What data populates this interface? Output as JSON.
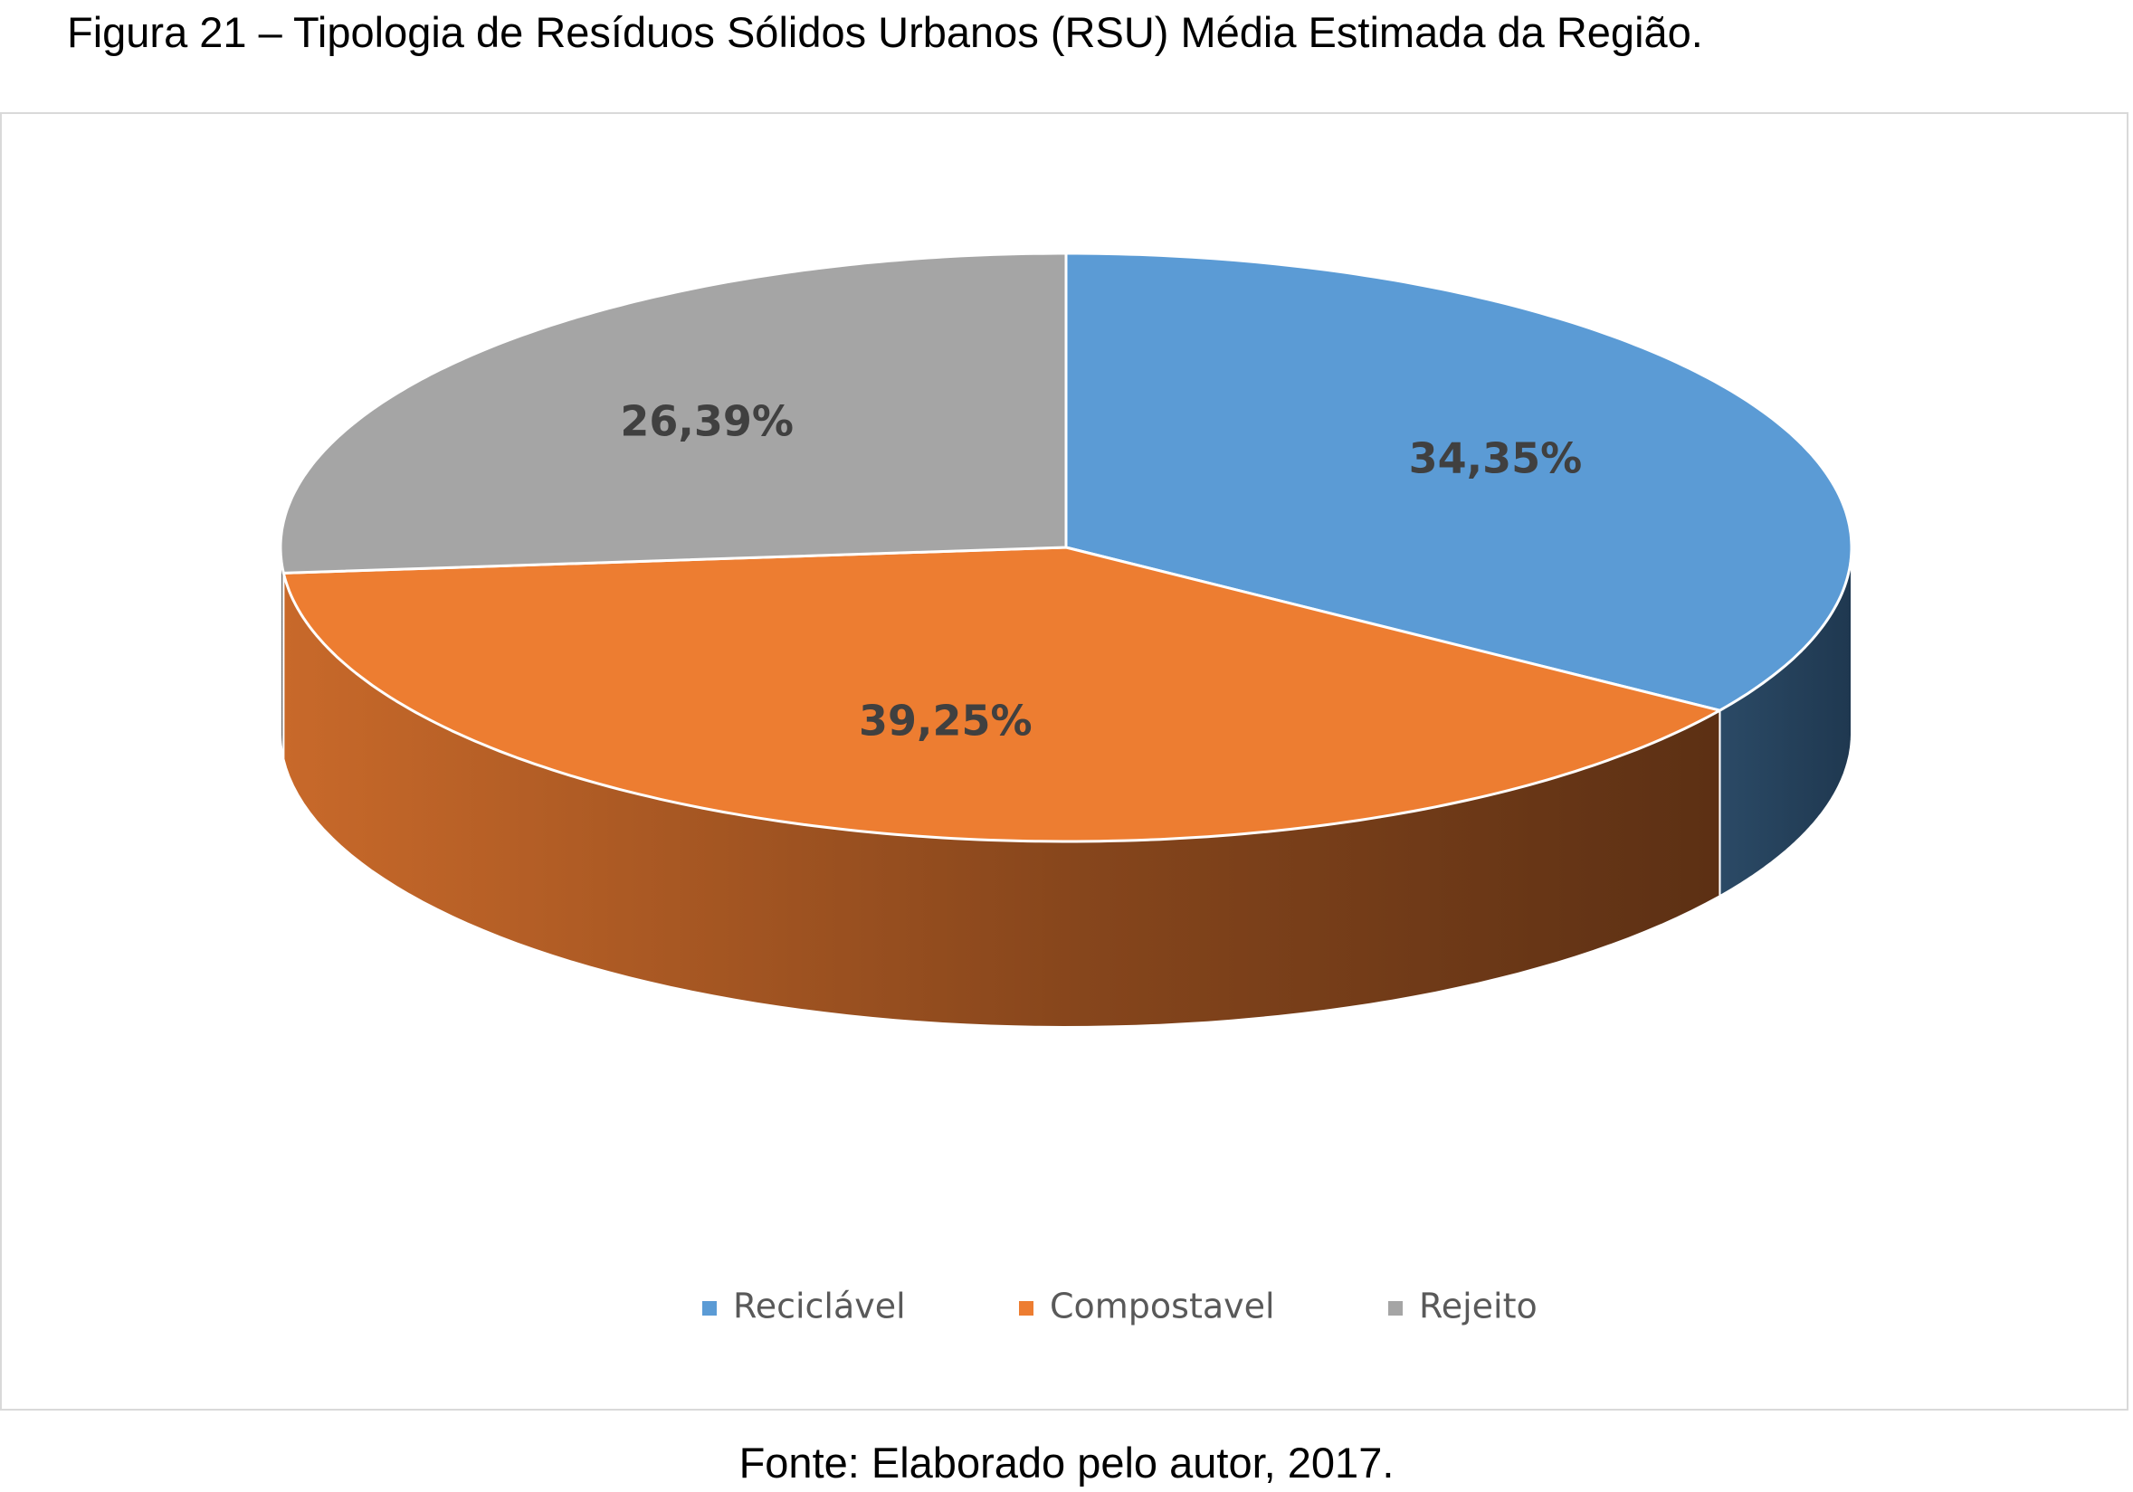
{
  "caption": {
    "figure_title": "Figura 21 – Tipologia de Resíduos Sólidos Urbanos (RSU) Média Estimada da Região.",
    "source": "Fonte: Elaborado pelo autor, 2017."
  },
  "chart_data": {
    "type": "pie",
    "style": "3d-perspective",
    "title": "",
    "categories": [
      "Reciclável",
      "Compostavel",
      "Rejeito"
    ],
    "values": [
      34.35,
      39.25,
      26.39
    ],
    "data_labels": [
      "34,35%",
      "39,25%",
      "26,39%"
    ],
    "colors": [
      "#5b9bd5",
      "#ed7d31",
      "#a5a5a5"
    ],
    "label_color": "#404040",
    "legend_color": "#595959",
    "start_angle_deg": 0,
    "direction": "clockwise",
    "legend_position": "bottom",
    "frame_border": "#d9d9d9"
  }
}
